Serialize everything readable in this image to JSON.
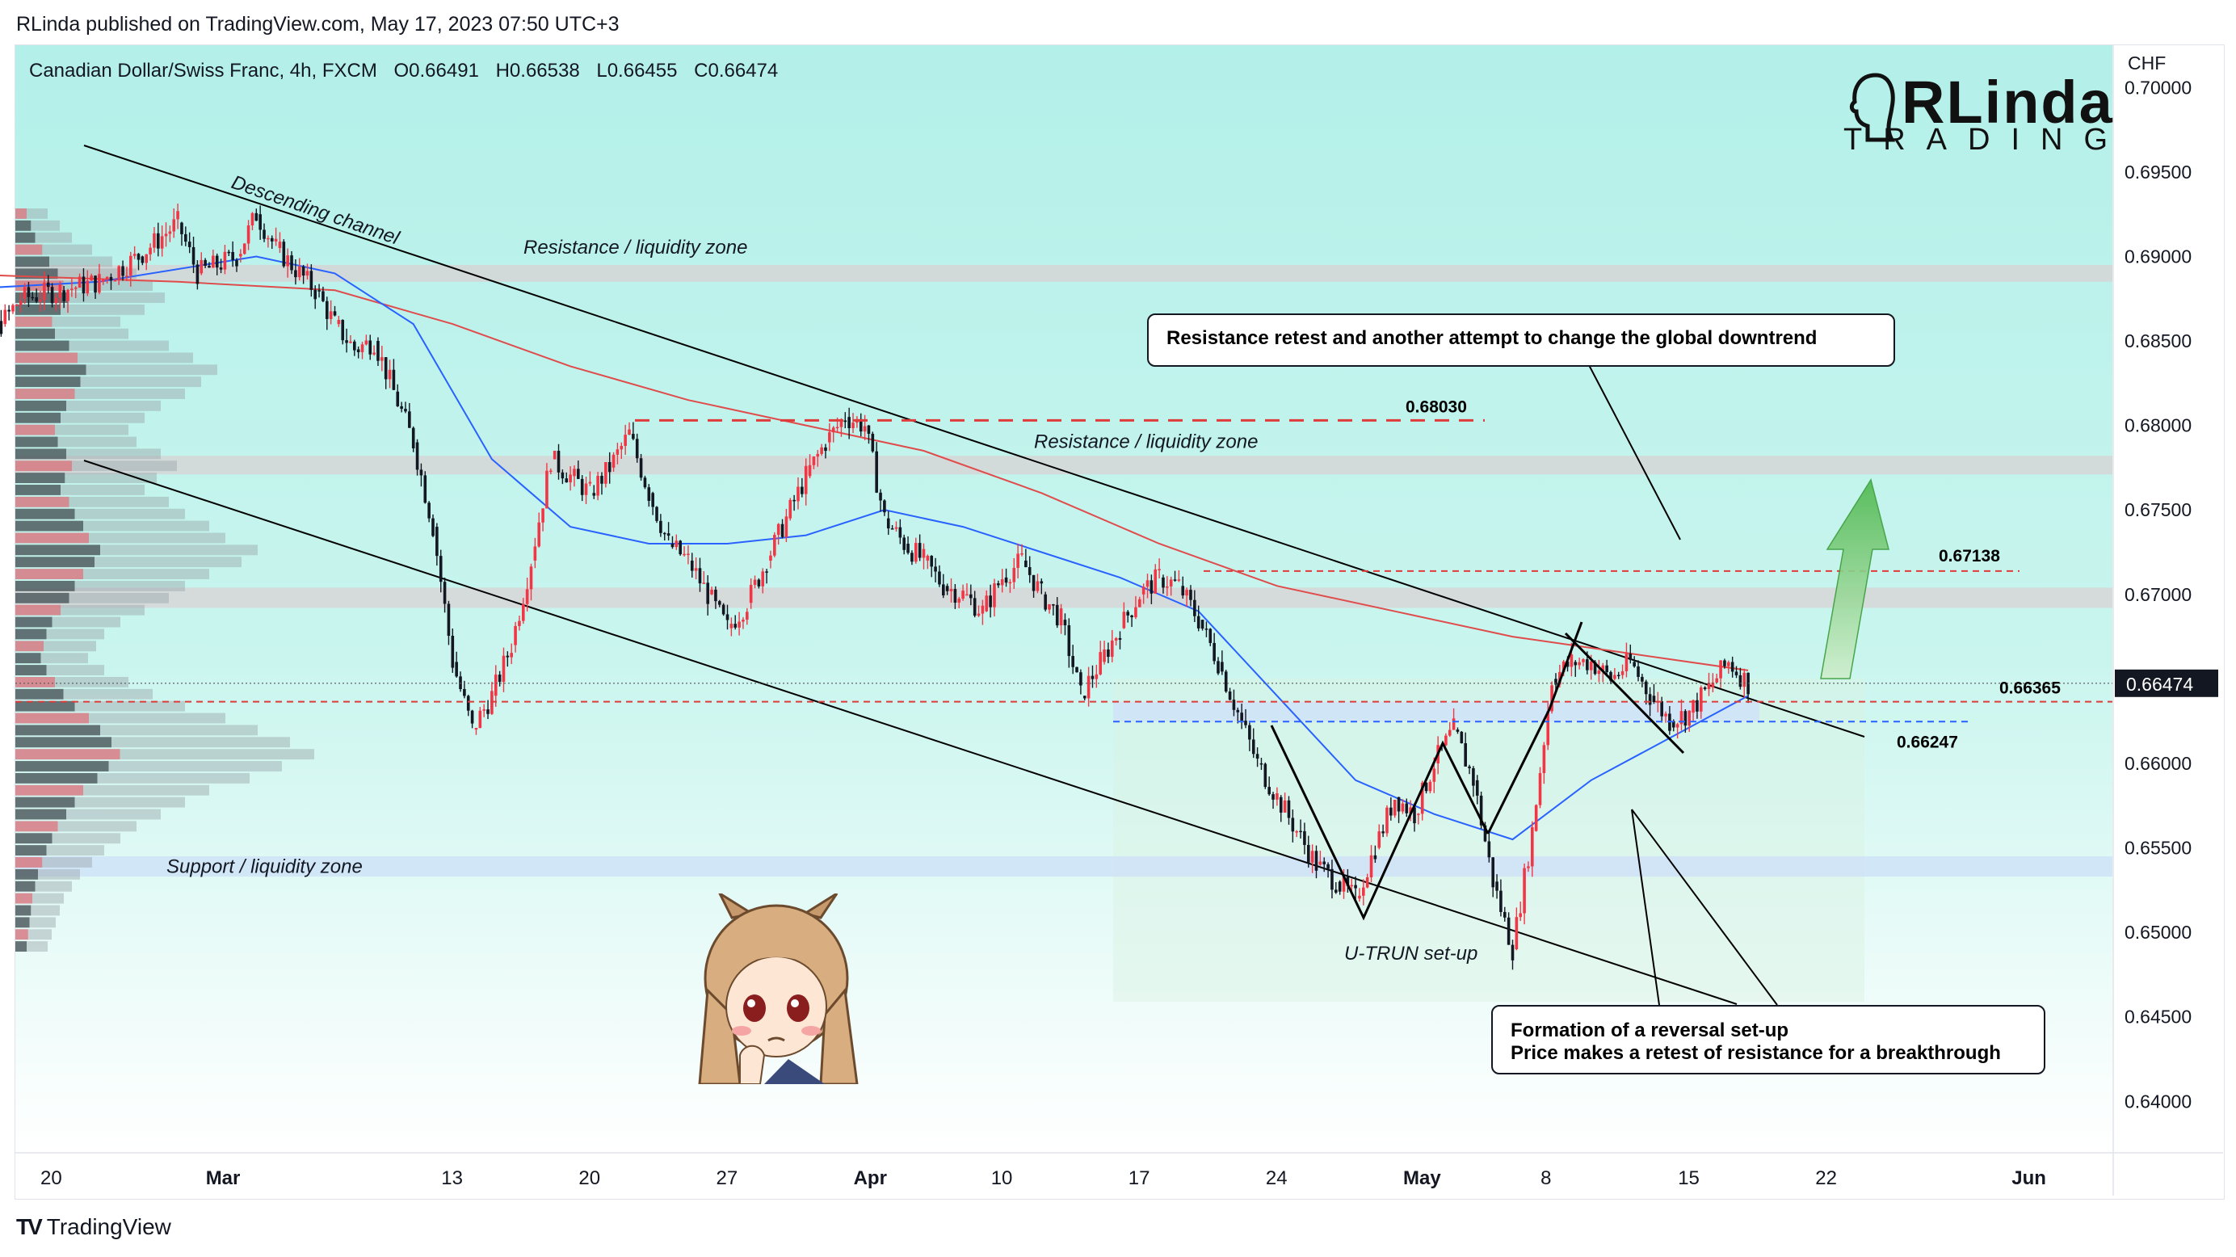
{
  "header": {
    "published_by": "RLinda published on TradingView.com, May 17, 2023 07:50 UTC+3"
  },
  "legend": {
    "symbol": "Canadian Dollar/Swiss Franc, 4h, FXCM",
    "open": "O0.66491",
    "high": "H0.66538",
    "low": "L0.66455",
    "close": "C0.66474"
  },
  "brand": {
    "name": "RLinda",
    "sub": "TRADING"
  },
  "footer": {
    "tradingview": "TradingView"
  },
  "colors": {
    "bullish": "#f23645",
    "bearish": "#131722",
    "ma_fast": "#2962ff",
    "ma_slow": "#e04b4b",
    "zone_gray": "#d6d6d6",
    "zone_blue": "#cfe3f7",
    "price_tag": "#131722",
    "arrow_green": "#5cbf5c",
    "background_top": "#b3f0e9",
    "background_bottom": "#ffffff"
  },
  "chart_data": {
    "type": "candlestick",
    "currency": "CHF",
    "price_axis_labels": [
      "0.70000",
      "0.69500",
      "0.69000",
      "0.68500",
      "0.68000",
      "0.67500",
      "0.67000",
      "0.66500",
      "0.66000",
      "0.65500",
      "0.65000",
      "0.64500",
      "0.64000"
    ],
    "time_axis_labels": [
      "20",
      "Mar",
      "13",
      "20",
      "27",
      "Apr",
      "10",
      "17",
      "24",
      "May",
      "8",
      "15",
      "22",
      "Jun"
    ],
    "ylim": [
      0.637,
      0.7025
    ],
    "current_price": "0.66474",
    "levels": [
      {
        "label": "0.68030",
        "value": 0.6803
      },
      {
        "label": "0.67138",
        "value": 0.67138
      },
      {
        "label": "0.66365",
        "value": 0.66365
      },
      {
        "label": "0.66247",
        "value": 0.66247
      }
    ],
    "zones": [
      {
        "label": "Resistance / liquidity zone",
        "from": 0.6885,
        "to": 0.6895
      },
      {
        "label": "Resistance / liquidity zone",
        "from": 0.6771,
        "to": 0.6782
      },
      {
        "label": "",
        "from": 0.6692,
        "to": 0.6704
      },
      {
        "label": "Support / liquidity zone",
        "from": 0.6533,
        "to": 0.6545
      }
    ],
    "annotations": {
      "channel": "Descending channel",
      "u_turn": "U-TRUN set-up",
      "callout_top": "Resistance retest and another attempt to change the global downtrend",
      "callout_bottom_1": "Formation of a reversal set-up",
      "callout_bottom_2": "Price makes a retest of resistance for a breakthrough"
    },
    "close_path": [
      [
        "2023-02-15",
        0.69
      ],
      [
        "2023-02-16",
        0.687
      ],
      [
        "2023-02-17",
        0.685
      ],
      [
        "2023-02-18",
        0.686
      ],
      [
        "2023-02-19",
        0.6875
      ],
      [
        "2023-02-21",
        0.688
      ],
      [
        "2023-02-23",
        0.6885
      ],
      [
        "2023-02-25",
        0.69
      ],
      [
        "2023-02-27",
        0.692
      ],
      [
        "2023-02-28",
        0.689
      ],
      [
        "2023-03-02",
        0.69
      ],
      [
        "2023-03-03",
        0.6925
      ],
      [
        "2023-03-04",
        0.6905
      ],
      [
        "2023-03-06",
        0.688
      ],
      [
        "2023-03-07",
        0.686
      ],
      [
        "2023-03-08",
        0.6845
      ],
      [
        "2023-03-09",
        0.685
      ],
      [
        "2023-03-10",
        0.682
      ],
      [
        "2023-03-11",
        0.679
      ],
      [
        "2023-03-12",
        0.674
      ],
      [
        "2023-03-13",
        0.666
      ],
      [
        "2023-03-14",
        0.662
      ],
      [
        "2023-03-15",
        0.664
      ],
      [
        "2023-03-16",
        0.667
      ],
      [
        "2023-03-17",
        0.672
      ],
      [
        "2023-03-18",
        0.678
      ],
      [
        "2023-03-19",
        0.677
      ],
      [
        "2023-03-20",
        0.676
      ],
      [
        "2023-03-21",
        0.6775
      ],
      [
        "2023-03-22",
        0.6795
      ],
      [
        "2023-03-23",
        0.676
      ],
      [
        "2023-03-24",
        0.673
      ],
      [
        "2023-03-25",
        0.672
      ],
      [
        "2023-03-26",
        0.67
      ],
      [
        "2023-03-27",
        0.668
      ],
      [
        "2023-03-28",
        0.6695
      ],
      [
        "2023-03-29",
        0.672
      ],
      [
        "2023-03-30",
        0.6745
      ],
      [
        "2023-03-31",
        0.677
      ],
      [
        "2023-04-01",
        0.679
      ],
      [
        "2023-04-02",
        0.6805
      ],
      [
        "2023-04-03",
        0.68
      ],
      [
        "2023-04-04",
        0.6745
      ],
      [
        "2023-04-05",
        0.673
      ],
      [
        "2023-04-06",
        0.672
      ],
      [
        "2023-04-07",
        0.6705
      ],
      [
        "2023-04-08",
        0.67
      ],
      [
        "2023-04-09",
        0.669
      ],
      [
        "2023-04-10",
        0.671
      ],
      [
        "2023-04-11",
        0.672
      ],
      [
        "2023-04-12",
        0.67
      ],
      [
        "2023-04-13",
        0.6685
      ],
      [
        "2023-04-14",
        0.664
      ],
      [
        "2023-04-15",
        0.666
      ],
      [
        "2023-04-16",
        0.668
      ],
      [
        "2023-04-17",
        0.67
      ],
      [
        "2023-04-18",
        0.671
      ],
      [
        "2023-04-19",
        0.6705
      ],
      [
        "2023-04-20",
        0.6685
      ],
      [
        "2023-04-21",
        0.666
      ],
      [
        "2023-04-22",
        0.663
      ],
      [
        "2023-04-23",
        0.66
      ],
      [
        "2023-04-24",
        0.658
      ],
      [
        "2023-04-25",
        0.656
      ],
      [
        "2023-04-26",
        0.654
      ],
      [
        "2023-04-27",
        0.653
      ],
      [
        "2023-04-28",
        0.652
      ],
      [
        "2023-04-29",
        0.655
      ],
      [
        "2023-04-30",
        0.658
      ],
      [
        "2023-05-01",
        0.657
      ],
      [
        "2023-05-02",
        0.66
      ],
      [
        "2023-05-03",
        0.662
      ],
      [
        "2023-05-04",
        0.659
      ],
      [
        "2023-05-05",
        0.653
      ],
      [
        "2023-05-06",
        0.649
      ],
      [
        "2023-05-07",
        0.656
      ],
      [
        "2023-05-08",
        0.665
      ],
      [
        "2023-05-09",
        0.666
      ],
      [
        "2023-05-10",
        0.666
      ],
      [
        "2023-05-11",
        0.665
      ],
      [
        "2023-05-12",
        0.666
      ],
      [
        "2023-05-13",
        0.664
      ],
      [
        "2023-05-14",
        0.6625
      ],
      [
        "2023-05-15",
        0.663
      ],
      [
        "2023-05-16",
        0.6645
      ],
      [
        "2023-05-17",
        0.666
      ],
      [
        "2023-05-18",
        0.6647
      ]
    ],
    "ma_fast": [
      [
        "2023-02-15",
        0.688
      ],
      [
        "2023-02-23",
        0.6885
      ],
      [
        "2023-03-03",
        0.69
      ],
      [
        "2023-03-07",
        0.689
      ],
      [
        "2023-03-11",
        0.686
      ],
      [
        "2023-03-15",
        0.678
      ],
      [
        "2023-03-19",
        0.674
      ],
      [
        "2023-03-23",
        0.673
      ],
      [
        "2023-03-27",
        0.673
      ],
      [
        "2023-03-31",
        0.6735
      ],
      [
        "2023-04-04",
        0.675
      ],
      [
        "2023-04-08",
        0.674
      ],
      [
        "2023-04-12",
        0.6725
      ],
      [
        "2023-04-16",
        0.671
      ],
      [
        "2023-04-20",
        0.669
      ],
      [
        "2023-04-24",
        0.664
      ],
      [
        "2023-04-28",
        0.659
      ],
      [
        "2023-05-02",
        0.657
      ],
      [
        "2023-05-06",
        0.6555
      ],
      [
        "2023-05-10",
        0.659
      ],
      [
        "2023-05-14",
        0.6615
      ],
      [
        "2023-05-18",
        0.664
      ]
    ],
    "ma_slow": [
      [
        "2023-02-15",
        0.689
      ],
      [
        "2023-02-27",
        0.6885
      ],
      [
        "2023-03-07",
        0.688
      ],
      [
        "2023-03-13",
        0.686
      ],
      [
        "2023-03-19",
        0.6835
      ],
      [
        "2023-03-25",
        0.6815
      ],
      [
        "2023-03-31",
        0.68
      ],
      [
        "2023-04-06",
        0.6785
      ],
      [
        "2023-04-12",
        0.676
      ],
      [
        "2023-04-18",
        0.673
      ],
      [
        "2023-04-24",
        0.6705
      ],
      [
        "2023-04-30",
        0.669
      ],
      [
        "2023-05-06",
        0.6675
      ],
      [
        "2023-05-12",
        0.6665
      ],
      [
        "2023-05-18",
        0.6655
      ]
    ]
  }
}
